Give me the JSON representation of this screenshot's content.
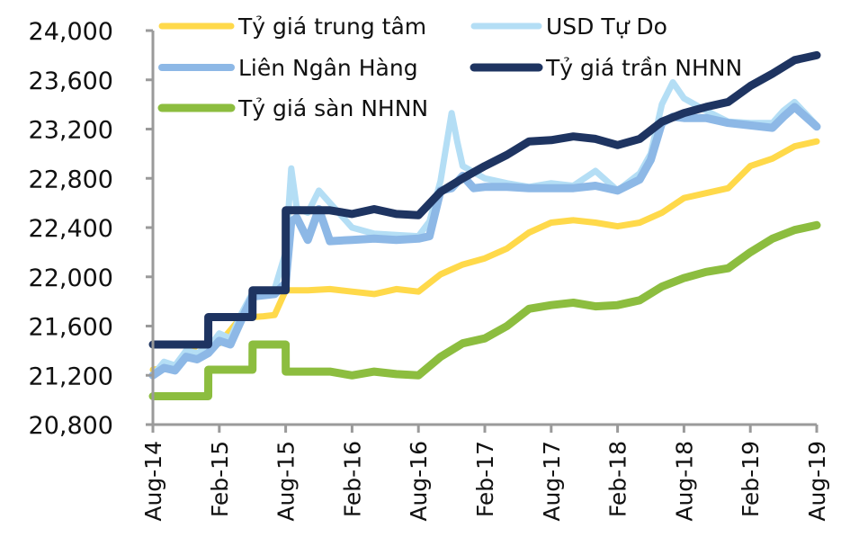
{
  "chart_data": {
    "type": "line",
    "title": "",
    "xlabel": "",
    "ylabel": "",
    "ylim": [
      20800,
      24000
    ],
    "yticks": [
      20800,
      21200,
      21600,
      22000,
      22400,
      22800,
      23200,
      23600,
      24000
    ],
    "ytick_labels": [
      "20,800",
      "21,200",
      "21,600",
      "22,000",
      "22,400",
      "22,800",
      "23,200",
      "23,600",
      "24,000"
    ],
    "xticks": [
      "Aug-14",
      "Feb-15",
      "Aug-15",
      "Feb-16",
      "Aug-16",
      "Feb-17",
      "Aug-17",
      "Feb-18",
      "Aug-18",
      "Feb-19",
      "Aug-19"
    ],
    "x_unit": "months since Aug-14",
    "grid": false,
    "legend_position": "top, two columns inside plot",
    "series": [
      {
        "name": "Tỷ giá trung tâm",
        "color": "#ffd94a",
        "width": 7,
        "x": [
          0,
          2,
          4,
          5,
          6,
          8,
          9,
          10,
          11,
          12,
          14,
          16,
          18,
          20,
          22,
          24,
          26,
          28,
          30,
          32,
          34,
          36,
          38,
          40,
          42,
          44,
          46,
          48,
          50,
          52,
          54,
          56,
          58,
          60
        ],
        "values": [
          21246,
          21270,
          21450,
          21450,
          21460,
          21673,
          21673,
          21680,
          21690,
          21890,
          21890,
          21900,
          21880,
          21860,
          21900,
          21880,
          22020,
          22100,
          22150,
          22230,
          22360,
          22440,
          22460,
          22440,
          22410,
          22440,
          22520,
          22640,
          22680,
          22720,
          22900,
          22960,
          23060,
          23100
        ]
      },
      {
        "name": "USD Tự Do",
        "color": "#b4def5",
        "width": 7,
        "x": [
          0,
          1,
          2,
          3,
          4,
          5,
          6,
          7,
          8,
          9,
          10,
          11,
          12,
          12.5,
          13,
          14,
          15,
          16,
          18,
          20,
          22,
          24,
          25,
          26,
          27,
          27.5,
          28,
          29,
          30,
          32,
          34,
          36,
          38,
          40,
          42,
          44,
          45,
          46,
          47,
          48,
          50,
          52,
          54,
          56,
          57,
          58,
          60
        ],
        "values": [
          21200,
          21310,
          21280,
          21400,
          21380,
          21420,
          21540,
          21500,
          21700,
          21870,
          21880,
          21900,
          22200,
          22880,
          22560,
          22520,
          22700,
          22600,
          22400,
          22350,
          22340,
          22330,
          22450,
          22780,
          23330,
          23100,
          22900,
          22850,
          22800,
          22760,
          22730,
          22760,
          22740,
          22860,
          22700,
          22840,
          23000,
          23400,
          23580,
          23450,
          23350,
          23260,
          23250,
          23250,
          23350,
          23420,
          23230
        ]
      },
      {
        "name": "Liên Ngân Hàng",
        "color": "#8db8e6",
        "width": 9,
        "x": [
          0,
          1,
          2,
          3,
          4,
          5,
          6,
          7,
          8,
          9,
          10,
          11,
          12,
          12.5,
          13,
          14,
          15,
          16,
          18,
          20,
          22,
          24,
          25,
          26,
          27,
          28,
          29,
          30,
          32,
          34,
          36,
          38,
          40,
          42,
          44,
          45,
          46,
          47,
          48,
          50,
          52,
          54,
          56,
          57,
          58,
          60
        ],
        "values": [
          21200,
          21260,
          21240,
          21350,
          21330,
          21380,
          21480,
          21450,
          21650,
          21840,
          21850,
          21860,
          21950,
          22450,
          22480,
          22300,
          22550,
          22290,
          22300,
          22310,
          22300,
          22310,
          22330,
          22700,
          22720,
          22820,
          22720,
          22730,
          22730,
          22720,
          22720,
          22720,
          22740,
          22700,
          22790,
          22950,
          23250,
          23300,
          23290,
          23290,
          23250,
          23230,
          23210,
          23300,
          23380,
          23220
        ]
      },
      {
        "name": "Tỷ giá trần NHNN",
        "color": "#1e3461",
        "width": 9,
        "x": [
          0,
          5,
          5.01,
          9,
          9.01,
          12,
          12.01,
          16,
          18,
          20,
          22,
          24,
          26,
          28,
          30,
          32,
          34,
          36,
          38,
          40,
          42,
          44,
          46,
          48,
          50,
          52,
          54,
          56,
          58,
          60
        ],
        "values": [
          21450,
          21450,
          21673,
          21673,
          21890,
          21890,
          22540,
          22540,
          22510,
          22550,
          22510,
          22500,
          22690,
          22800,
          22900,
          22990,
          23100,
          23110,
          23140,
          23120,
          23070,
          23120,
          23260,
          23330,
          23380,
          23420,
          23550,
          23650,
          23760,
          23800
        ]
      },
      {
        "name": "Tỷ giá sàn NHNN",
        "color": "#8cbd3f",
        "width": 9,
        "x": [
          0,
          5,
          5.01,
          9,
          9.01,
          12,
          12.01,
          16,
          18,
          20,
          22,
          24,
          26,
          28,
          30,
          32,
          34,
          36,
          38,
          40,
          42,
          44,
          46,
          48,
          50,
          52,
          54,
          56,
          58,
          60
        ],
        "values": [
          21030,
          21030,
          21246,
          21246,
          21450,
          21450,
          21230,
          21230,
          21200,
          21230,
          21210,
          21200,
          21350,
          21460,
          21500,
          21600,
          21740,
          21770,
          21790,
          21760,
          21770,
          21810,
          21920,
          21990,
          22040,
          22070,
          22200,
          22310,
          22380,
          22420
        ]
      }
    ]
  },
  "legend": {
    "items": [
      {
        "label": "Tỷ giá trung tâm",
        "color": "#ffd94a"
      },
      {
        "label": "USD Tự Do",
        "color": "#b4def5"
      },
      {
        "label": "Liên Ngân Hàng",
        "color": "#8db8e6"
      },
      {
        "label": "Tỷ giá trần NHNN",
        "color": "#1e3461"
      },
      {
        "label": "Tỷ giá sàn NHNN",
        "color": "#8cbd3f"
      }
    ]
  },
  "colors": {
    "axis": "#9a9a9a",
    "text": "#111111",
    "background": "#ffffff"
  }
}
